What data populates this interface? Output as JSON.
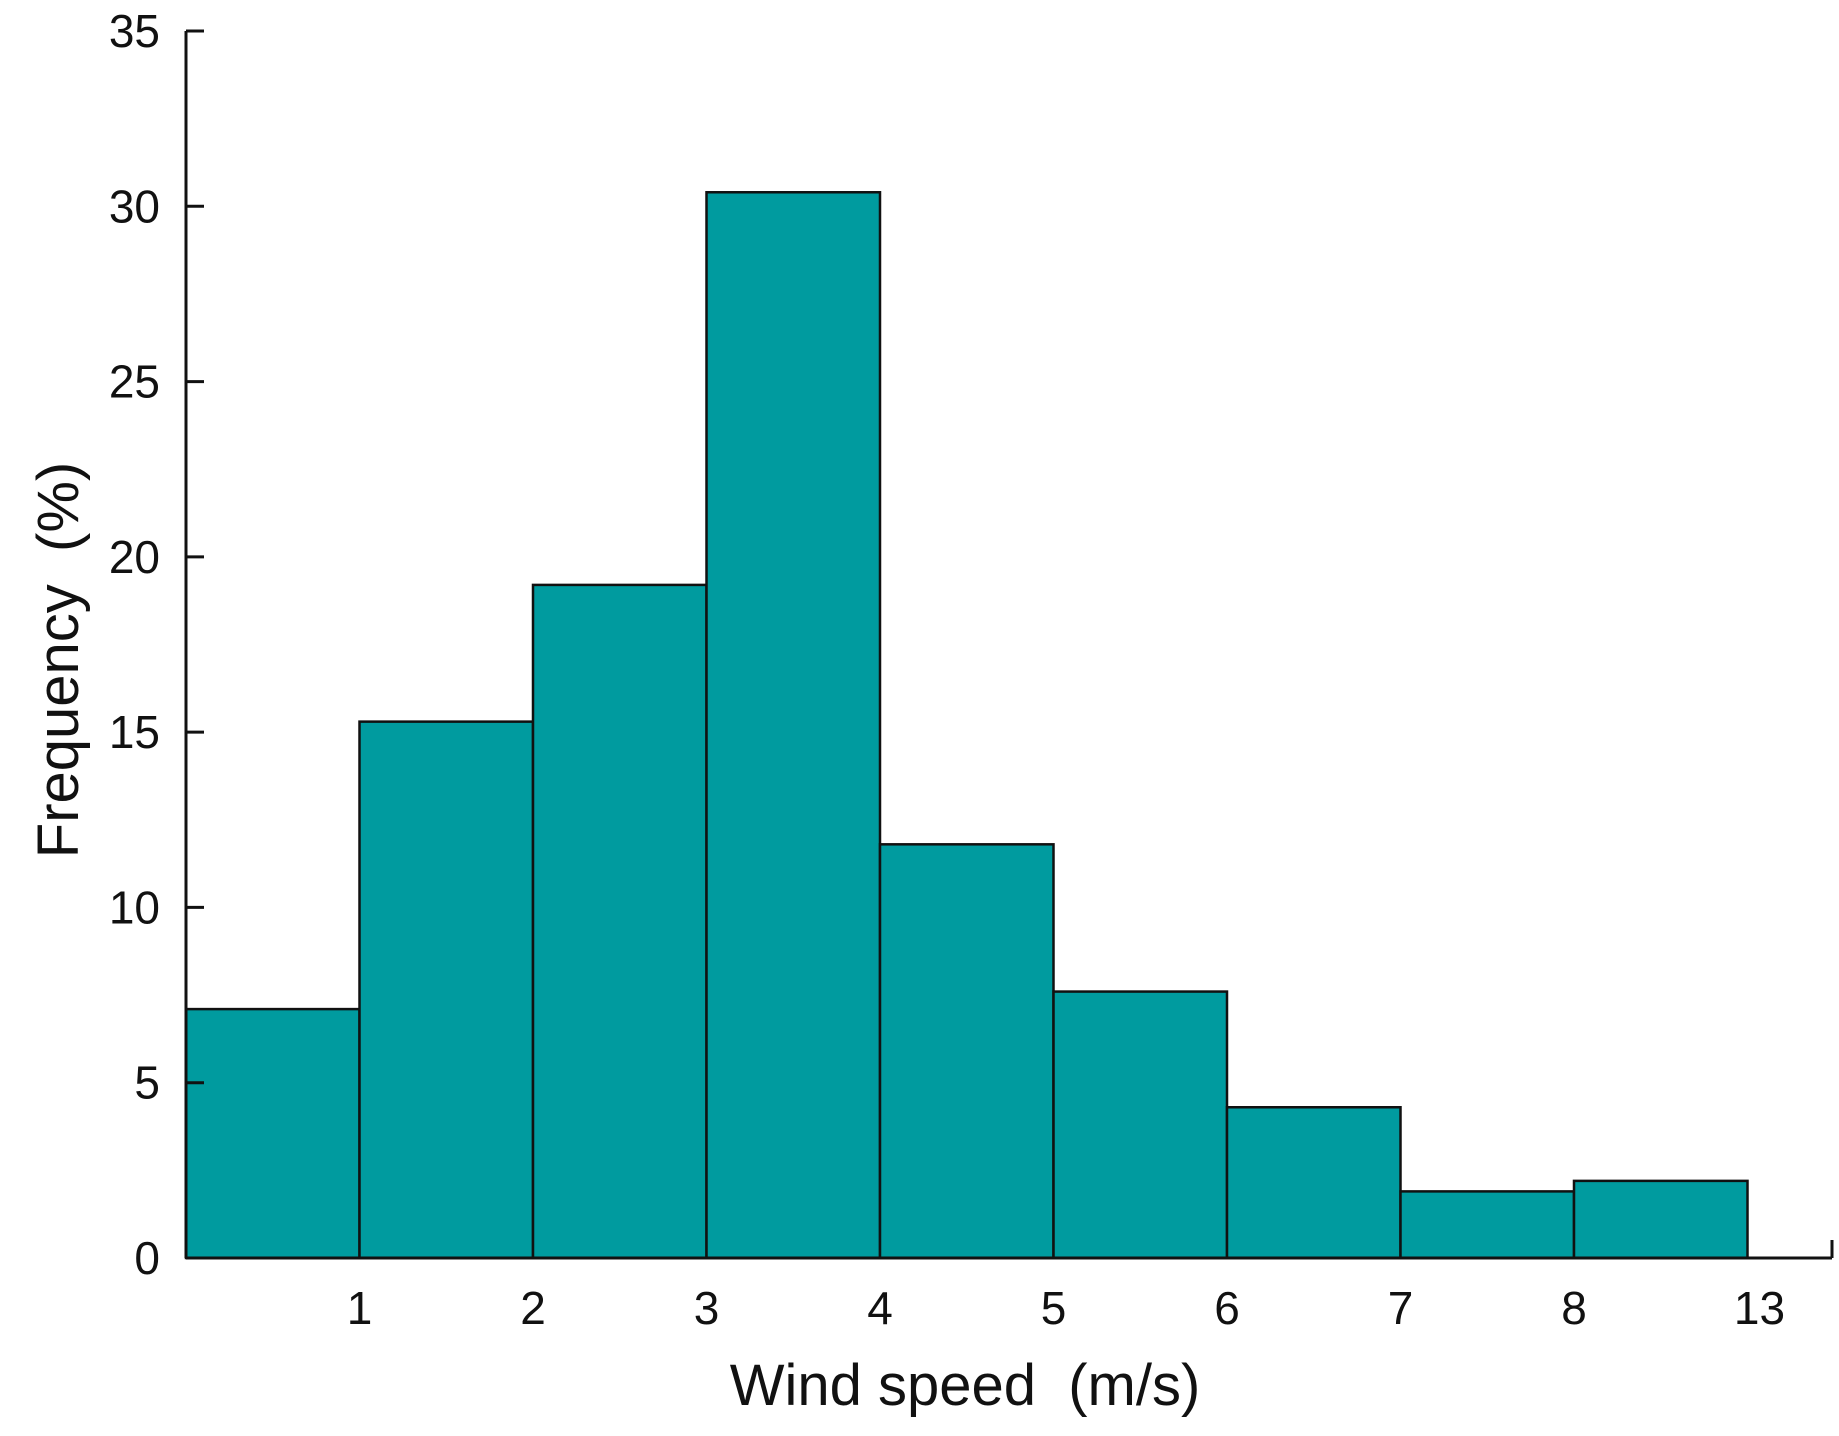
{
  "chart_data": {
    "type": "bar",
    "bin_edges": [
      "",
      "1",
      "2",
      "3",
      "4",
      "5",
      "6",
      "7",
      "8",
      "13"
    ],
    "x_tick_labels": [
      "1",
      "2",
      "3",
      "4",
      "5",
      "6",
      "7",
      "8",
      "13"
    ],
    "values": [
      7.1,
      15.3,
      19.2,
      30.4,
      11.8,
      7.6,
      4.3,
      1.9,
      2.2
    ],
    "y_ticks": [
      0,
      5,
      10,
      15,
      20,
      25,
      30,
      35
    ],
    "ylim": [
      0,
      35
    ],
    "xlabel": "Wind speed  (m/s)",
    "ylabel": "Frequency  (%)",
    "title": "",
    "grid": false,
    "bar_color": "#009b9f",
    "edge_color": "#111111"
  }
}
